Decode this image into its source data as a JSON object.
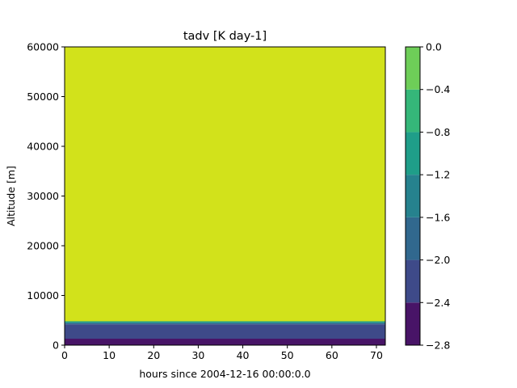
{
  "chart_data": {
    "type": "heatmap",
    "plot_kind": "filled-contour",
    "title": "tadv [K day-1]",
    "xlabel": "hours since 2004-12-16 00:00:0.0",
    "ylabel": "Altitude [m]",
    "xlim": [
      0,
      72
    ],
    "ylim": [
      0,
      60000
    ],
    "x_ticks": [
      0,
      10,
      20,
      30,
      40,
      50,
      60,
      70
    ],
    "y_ticks": [
      0,
      10000,
      20000,
      30000,
      40000,
      50000,
      60000
    ],
    "colorbar": {
      "position": "right",
      "levels": [
        -2.8,
        -2.4,
        -2.0,
        -1.6,
        -1.2,
        -0.8,
        -0.4,
        0.0
      ],
      "tick_labels": [
        "−2.8",
        "−2.4",
        "−2.0",
        "−1.6",
        "−1.2",
        "−0.8",
        "−0.4",
        "0.0"
      ],
      "colors": [
        "#481467",
        "#3e4a89",
        "#31688e",
        "#26828e",
        "#1f9e89",
        "#35b779",
        "#6ece58",
        "#d2e21b"
      ]
    },
    "bands": [
      {
        "y_range": [
          0,
          1300
        ],
        "level_index": 0,
        "value_range": [
          -2.8,
          -2.4
        ]
      },
      {
        "y_range": [
          1300,
          4200
        ],
        "level_index": 1,
        "value_range": [
          -2.4,
          -2.0
        ]
      },
      {
        "y_range": [
          4200,
          4500
        ],
        "level_index": 2,
        "value_range": [
          -2.0,
          -1.6
        ]
      },
      {
        "y_range": [
          4500,
          4800
        ],
        "level_index": 4,
        "value_range": [
          -1.2,
          -0.8
        ]
      },
      {
        "y_range": [
          4800,
          60000
        ],
        "level_index": 7,
        "value_range": [
          -0.4,
          0.0
        ]
      }
    ]
  }
}
